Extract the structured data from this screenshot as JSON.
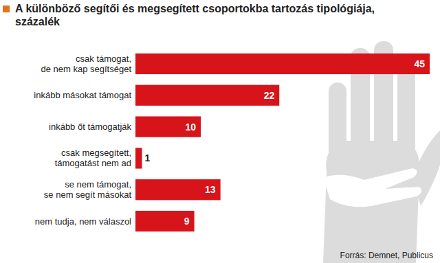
{
  "chart_data": {
    "type": "bar",
    "orientation": "horizontal",
    "title": "A különböző segítői és megsegített csoportokba tartozás tipológiája, százalék",
    "categories": [
      "csak támogat,\nde nem kap segítséget",
      "inkább másokat támogat",
      "inkább őt támogatják",
      "csak megsegített,\ntámogatást nem ad",
      "se nem támogat,\nse nem segít másokat",
      "nem tudja, nem válaszol"
    ],
    "values": [
      45,
      22,
      10,
      1,
      13,
      9
    ],
    "color": "#d7141a",
    "xlim": [
      0,
      45
    ],
    "data_labels": true,
    "tick_labels": "y",
    "grid": false,
    "source": "Forrás: Demnet, Publicus"
  }
}
